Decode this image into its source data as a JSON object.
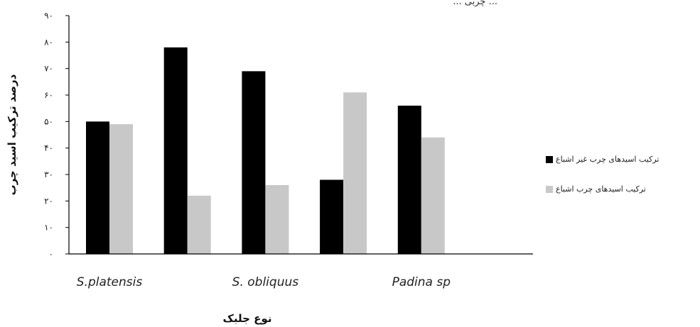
{
  "top_caption": "... چربی ...",
  "chart_data": {
    "type": "bar",
    "title": "",
    "xlabel": "نوع جلبک",
    "ylabel": "درصد ترکیب اسید چرب",
    "ylim": [
      0,
      90
    ],
    "yticks": [
      0,
      10,
      20,
      30,
      40,
      50,
      60,
      70,
      80,
      90
    ],
    "ytick_labels": [
      "۰",
      "۱۰",
      "۲۰",
      "۳۰",
      "۴۰",
      "۵۰",
      "۶۰",
      "۷۰",
      "۸۰",
      "۹۰"
    ],
    "categories": [
      "S.platensis",
      "",
      "S. obliquus",
      "",
      "Padina sp"
    ],
    "series": [
      {
        "name": "ترکیب اسیدهای چرب غیر اشباع",
        "color": "#000000",
        "values": [
          50,
          78,
          69,
          28,
          56
        ]
      },
      {
        "name": "ترکیب اسیدهای چرب اشباع",
        "color": "#c8c8c8",
        "values": [
          49,
          22,
          26,
          61,
          44
        ]
      }
    ],
    "grid": false,
    "legend": "right"
  }
}
